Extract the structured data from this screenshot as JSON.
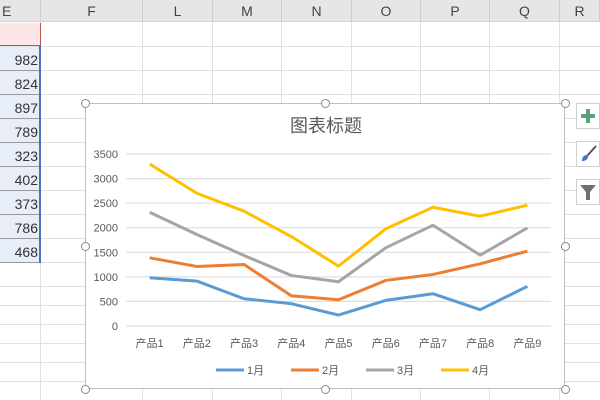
{
  "sheet": {
    "columns": [
      "E",
      "F",
      "L",
      "M",
      "N",
      "O",
      "P",
      "Q",
      "R"
    ],
    "column_e_values": [
      "982",
      "824",
      "897",
      "789",
      "323",
      "402",
      "373",
      "786",
      "468"
    ]
  },
  "chart_buttons": [
    {
      "icon": "plus-icon",
      "color": "#5aa07c"
    },
    {
      "icon": "brush-icon",
      "color": "#3c78c8"
    },
    {
      "icon": "filter-icon",
      "color": "#707070"
    }
  ],
  "chart_data": {
    "type": "line",
    "title": "图表标题",
    "categories": [
      "产品1",
      "产品2",
      "产品3",
      "产品4",
      "产品5",
      "产品6",
      "产品7",
      "产品8",
      "产品9"
    ],
    "ylim": [
      0,
      3500
    ],
    "yticks": [
      "0",
      "500",
      "1000",
      "1500",
      "2000",
      "2500",
      "3000",
      "3500"
    ],
    "grid": true,
    "legend": "bottom",
    "series": [
      {
        "name": "1月",
        "color": "#5b9bd5",
        "values": [
          982,
          914,
          555,
          454,
          223,
          521,
          657,
          332,
          806
        ]
      },
      {
        "name": "2月",
        "color": "#ed7d31",
        "values": [
          1388,
          1212,
          1252,
          616,
          535,
          927,
          1049,
          1266,
          1523
        ]
      },
      {
        "name": "3月",
        "color": "#a5a5a5",
        "values": [
          2315,
          1862,
          1435,
          1029,
          900,
          1591,
          2051,
          1442,
          1997
        ]
      },
      {
        "name": "4月",
        "color": "#ffc000",
        "values": [
          3297,
          2701,
          2336,
          1821,
          1219,
          1977,
          2417,
          2234,
          2458
        ]
      }
    ]
  }
}
